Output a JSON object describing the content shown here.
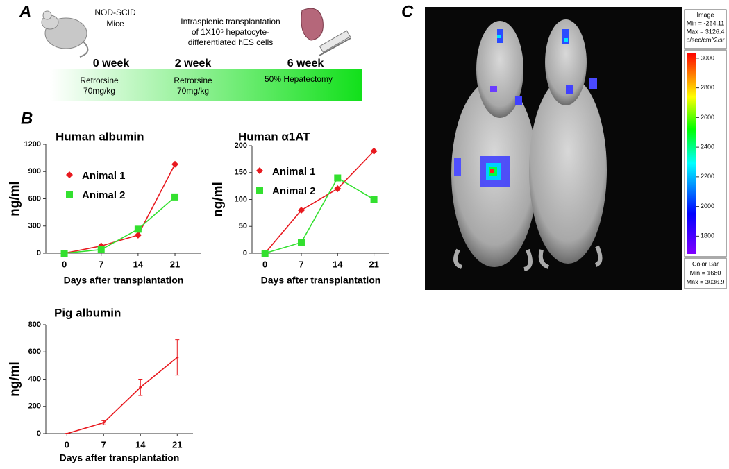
{
  "panels": {
    "a": "A",
    "b": "B",
    "c": "C"
  },
  "panel_a": {
    "mice_label": [
      "NOD-SCID",
      "Mice"
    ],
    "transplant_label": [
      "Intrasplenic transplantation",
      "of 1X10⁶ hepatocyte-",
      "differentiated hES cells"
    ],
    "timeline": [
      {
        "week": "0 week",
        "treatment": [
          "Retrorsine",
          "70mg/kg"
        ]
      },
      {
        "week": "2 week",
        "treatment": [
          "Retrorsine",
          "70mg/kg"
        ]
      },
      {
        "week": "6 week",
        "treatment": [
          "50% Hepatectomy"
        ]
      }
    ]
  },
  "chart_data": [
    {
      "type": "line",
      "title": "Human albumin",
      "y_label": "ng/ml",
      "x_label": "Days after transplantation",
      "x": [
        0,
        7,
        14,
        21
      ],
      "xlim": [
        -3.5,
        26
      ],
      "xticks": [
        0,
        7,
        14,
        21
      ],
      "ylim": [
        0,
        1200
      ],
      "yticks": [
        0,
        300,
        600,
        900,
        1200
      ],
      "legend": "upper left",
      "series": [
        {
          "name": "Animal 1",
          "color": "#e8191f",
          "marker": "diamond",
          "values": [
            0,
            80,
            200,
            980
          ]
        },
        {
          "name": "Animal 2",
          "color": "#33e02f",
          "marker": "square",
          "values": [
            0,
            40,
            265,
            620
          ]
        }
      ]
    },
    {
      "type": "line",
      "title": "Human α1AT",
      "y_label": "ng/ml",
      "x_label": "Days after transplantation",
      "x": [
        0,
        7,
        14,
        21
      ],
      "xlim": [
        -2.5,
        24
      ],
      "xticks": [
        0,
        7,
        14,
        21
      ],
      "ylim": [
        0,
        200
      ],
      "yticks": [
        0,
        50,
        100,
        150,
        200
      ],
      "legend": "upper left",
      "series": [
        {
          "name": "Animal 1",
          "color": "#e8191f",
          "marker": "diamond",
          "values": [
            0,
            80,
            120,
            190
          ]
        },
        {
          "name": "Animal 2",
          "color": "#33e02f",
          "marker": "square",
          "values": [
            0,
            20,
            140,
            100
          ]
        }
      ]
    },
    {
      "type": "line",
      "title": "Pig albumin",
      "y_label": "ng/ml",
      "x_label": "Days after transplantation",
      "x": [
        0,
        7,
        14,
        21
      ],
      "xlim": [
        -4,
        24
      ],
      "xticks": [
        0,
        7,
        14,
        21
      ],
      "ylim": [
        0,
        800
      ],
      "yticks": [
        0,
        200,
        400,
        600,
        800
      ],
      "series": [
        {
          "color": "#e8191f",
          "marker": "dash",
          "values": [
            0,
            80,
            340,
            560
          ],
          "errors": [
            0,
            15,
            60,
            130
          ]
        }
      ]
    }
  ],
  "panel_c": {
    "image_box": [
      "Image",
      "Min = -264.11",
      "Max = 3126.4",
      "p/sec/cm^2/sr"
    ],
    "color_bar_box": [
      "Color Bar",
      "Min = 1680",
      "Max = 3036.9"
    ],
    "color_scale": {
      "lim": [
        1680,
        3036.9
      ],
      "ticks": [
        1800,
        2000,
        2200,
        2400,
        2600,
        2800,
        3000
      ]
    }
  }
}
